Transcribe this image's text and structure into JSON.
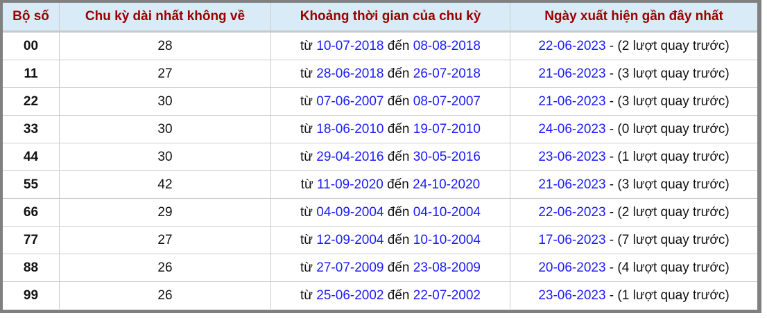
{
  "headers": [
    "Bộ số",
    "Chu kỳ dài nhất không về",
    "Khoảng thời gian của chu kỳ",
    "Ngày xuất hiện gần đây nhất"
  ],
  "labels": {
    "from": "từ",
    "to": "đến",
    "sep": " - "
  },
  "colors": {
    "header_text": "#9a0000",
    "header_bg": "#d9ebf6",
    "link": "#1a1aff",
    "frame": "#808080"
  },
  "rows": [
    {
      "num": "00",
      "cycle": "28",
      "start": "10-07-2018",
      "end": "08-08-2018",
      "last": "22-06-2023",
      "note": "(2 lượt quay trước)"
    },
    {
      "num": "11",
      "cycle": "27",
      "start": "28-06-2018",
      "end": "26-07-2018",
      "last": "21-06-2023",
      "note": "(3 lượt quay trước)"
    },
    {
      "num": "22",
      "cycle": "30",
      "start": "07-06-2007",
      "end": "08-07-2007",
      "last": "21-06-2023",
      "note": "(3 lượt quay trước)"
    },
    {
      "num": "33",
      "cycle": "30",
      "start": "18-06-2010",
      "end": "19-07-2010",
      "last": "24-06-2023",
      "note": "(0 lượt quay trước)"
    },
    {
      "num": "44",
      "cycle": "30",
      "start": "29-04-2016",
      "end": "30-05-2016",
      "last": "23-06-2023",
      "note": "(1 lượt quay trước)"
    },
    {
      "num": "55",
      "cycle": "42",
      "start": "11-09-2020",
      "end": "24-10-2020",
      "last": "21-06-2023",
      "note": "(3 lượt quay trước)"
    },
    {
      "num": "66",
      "cycle": "29",
      "start": "04-09-2004",
      "end": "04-10-2004",
      "last": "22-06-2023",
      "note": "(2 lượt quay trước)"
    },
    {
      "num": "77",
      "cycle": "27",
      "start": "12-09-2004",
      "end": "10-10-2004",
      "last": "17-06-2023",
      "note": "(7 lượt quay trước)"
    },
    {
      "num": "88",
      "cycle": "26",
      "start": "27-07-2009",
      "end": "23-08-2009",
      "last": "20-06-2023",
      "note": "(4 lượt quay trước)"
    },
    {
      "num": "99",
      "cycle": "26",
      "start": "25-06-2002",
      "end": "22-07-2002",
      "last": "23-06-2023",
      "note": "(1 lượt quay trước)"
    }
  ]
}
